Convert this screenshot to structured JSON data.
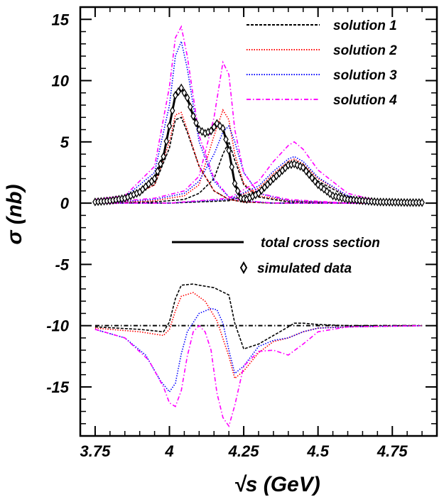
{
  "chart_data": {
    "type": "line",
    "xlabel": "√s (GeV)",
    "ylabel": "σ (nb)",
    "xlim": [
      3.7,
      4.9
    ],
    "ylim": [
      -19,
      16
    ],
    "x_ticks": [
      "3.75",
      "4",
      "4.25",
      "4.5",
      "4.75"
    ],
    "y_ticks": [
      "15",
      "10",
      "5",
      "0",
      "-5",
      "-10",
      "-15"
    ],
    "legend_position": "top-right",
    "legend": [
      {
        "label": "solution 1",
        "color": "#000000",
        "style": "dashed"
      },
      {
        "label": "solution 2",
        "color": "#ff0000",
        "style": "dotted"
      },
      {
        "label": "solution 3",
        "color": "#0000ff",
        "style": "dotted"
      },
      {
        "label": "solution 4",
        "color": "#ff00ff",
        "style": "dashdot"
      }
    ],
    "legend2": [
      {
        "label": "total cross section",
        "style": "solid"
      },
      {
        "label": "simulated data",
        "style": "marker"
      }
    ],
    "baseline": {
      "y": -10,
      "style": "dashdot",
      "color": "#000000"
    },
    "total_cross_section": {
      "x": [
        3.75,
        3.8,
        3.85,
        3.9,
        3.95,
        3.98,
        4.0,
        4.02,
        4.04,
        4.06,
        4.08,
        4.1,
        4.12,
        4.14,
        4.16,
        4.18,
        4.2,
        4.22,
        4.24,
        4.26,
        4.3,
        4.35,
        4.4,
        4.42,
        4.45,
        4.5,
        4.55,
        4.6,
        4.7,
        4.8,
        4.85
      ],
      "y": [
        0.1,
        0.2,
        0.4,
        0.9,
        2.0,
        3.8,
        6.3,
        8.8,
        9.4,
        8.6,
        7.1,
        6.0,
        5.7,
        5.9,
        6.5,
        6.1,
        4.3,
        1.6,
        0.4,
        0.3,
        0.8,
        2.0,
        3.1,
        3.2,
        2.9,
        1.5,
        0.6,
        0.3,
        0.1,
        0.05,
        0.05
      ]
    },
    "series": [
      {
        "name": "solution 1",
        "components": [
          {
            "x": [
              3.75,
              3.85,
              3.95,
              4.0,
              4.02,
              4.04,
              4.06,
              4.1,
              4.15,
              4.2,
              4.25,
              4.35,
              4.5,
              4.85
            ],
            "y": [
              0.1,
              0.3,
              1.5,
              4.5,
              6.8,
              7.0,
              5.8,
              3.0,
              1.0,
              0.3,
              0.1,
              0.0,
              0.0,
              0.0
            ]
          },
          {
            "x": [
              3.75,
              3.95,
              4.05,
              4.1,
              4.15,
              4.18,
              4.2,
              4.22,
              4.25,
              4.3,
              4.4,
              4.6,
              4.85
            ],
            "y": [
              0.0,
              0.1,
              0.3,
              0.8,
              2.0,
              4.0,
              5.0,
              3.5,
              1.5,
              0.5,
              0.1,
              0.0,
              0.0
            ]
          },
          {
            "x": [
              3.75,
              4.0,
              4.2,
              4.3,
              4.35,
              4.4,
              4.42,
              4.45,
              4.5,
              4.6,
              4.7,
              4.85
            ],
            "y": [
              0.0,
              0.0,
              0.2,
              1.0,
              2.0,
              3.0,
              3.2,
              2.9,
              1.8,
              0.5,
              0.1,
              0.0
            ]
          },
          {
            "x": [
              3.75,
              3.9,
              3.98,
              4.0,
              4.02,
              4.04,
              4.08,
              4.1,
              4.15,
              4.2,
              4.22,
              4.25,
              4.3,
              4.35,
              4.4,
              4.42,
              4.45,
              4.5,
              4.6,
              4.85
            ],
            "y": [
              -10.1,
              -10.3,
              -10.5,
              -9.7,
              -7.8,
              -6.7,
              -6.6,
              -6.7,
              -6.9,
              -7.5,
              -9.8,
              -11.9,
              -11.5,
              -10.8,
              -10.1,
              -9.8,
              -9.8,
              -9.9,
              -10.0,
              -10.0
            ]
          }
        ]
      },
      {
        "name": "solution 2",
        "components": [
          {
            "x": [
              3.75,
              3.85,
              3.95,
              4.0,
              4.02,
              4.04,
              4.06,
              4.1,
              4.15,
              4.2,
              4.25,
              4.35,
              4.5,
              4.85
            ],
            "y": [
              0.1,
              0.3,
              1.5,
              5.0,
              7.2,
              7.4,
              6.0,
              3.0,
              1.0,
              0.3,
              0.1,
              0.0,
              0.0,
              0.0
            ]
          },
          {
            "x": [
              3.75,
              3.95,
              4.05,
              4.1,
              4.15,
              4.18,
              4.2,
              4.22,
              4.25,
              4.3,
              4.4,
              4.6,
              4.85
            ],
            "y": [
              0.0,
              0.2,
              0.6,
              1.5,
              5.5,
              7.6,
              6.8,
              4.0,
              1.6,
              0.6,
              0.2,
              0.0,
              0.0
            ]
          },
          {
            "x": [
              3.75,
              4.0,
              4.2,
              4.3,
              4.35,
              4.4,
              4.42,
              4.45,
              4.5,
              4.6,
              4.7,
              4.85
            ],
            "y": [
              0.0,
              0.0,
              0.3,
              1.2,
              2.4,
              3.4,
              3.6,
              3.2,
              2.0,
              0.6,
              0.1,
              0.0
            ]
          },
          {
            "x": [
              3.75,
              3.9,
              3.98,
              4.0,
              4.02,
              4.04,
              4.08,
              4.12,
              4.16,
              4.2,
              4.22,
              4.25,
              4.3,
              4.35,
              4.4,
              4.45,
              4.5,
              4.6,
              4.85
            ],
            "y": [
              -10.2,
              -10.5,
              -10.8,
              -10.3,
              -8.8,
              -7.6,
              -7.3,
              -8.0,
              -9.6,
              -12.5,
              -14.3,
              -13.7,
              -12.2,
              -11.3,
              -11.0,
              -10.5,
              -10.2,
              -10.1,
              -10.0
            ]
          }
        ]
      },
      {
        "name": "solution 3",
        "components": [
          {
            "x": [
              3.75,
              3.85,
              3.95,
              4.0,
              4.02,
              4.04,
              4.06,
              4.1,
              4.15,
              4.2,
              4.25,
              4.35,
              4.5,
              4.85
            ],
            "y": [
              0.2,
              0.5,
              2.5,
              8.0,
              12.0,
              13.2,
              11.0,
              5.0,
              1.8,
              0.5,
              0.2,
              0.0,
              0.0,
              0.0
            ]
          },
          {
            "x": [
              3.75,
              3.95,
              4.05,
              4.1,
              4.15,
              4.18,
              4.2,
              4.22,
              4.25,
              4.3,
              4.4,
              4.6,
              4.85
            ],
            "y": [
              0.0,
              0.3,
              0.8,
              1.8,
              4.0,
              5.8,
              6.3,
              5.0,
              2.5,
              0.8,
              0.2,
              0.0,
              0.0
            ]
          },
          {
            "x": [
              3.75,
              4.0,
              4.2,
              4.3,
              4.35,
              4.4,
              4.42,
              4.45,
              4.5,
              4.6,
              4.7,
              4.85
            ],
            "y": [
              0.0,
              0.0,
              0.3,
              1.4,
              2.6,
              3.6,
              3.8,
              3.4,
              2.1,
              0.6,
              0.1,
              0.0
            ]
          },
          {
            "x": [
              3.75,
              3.85,
              3.92,
              3.97,
              4.0,
              4.02,
              4.04,
              4.06,
              4.1,
              4.14,
              4.16,
              4.18,
              4.2,
              4.22,
              4.25,
              4.3,
              4.35,
              4.4,
              4.45,
              4.5,
              4.6,
              4.85
            ],
            "y": [
              -10.3,
              -11.0,
              -12.4,
              -14.5,
              -15.4,
              -14.7,
              -12.3,
              -10.5,
              -9.0,
              -8.6,
              -8.7,
              -9.8,
              -12.0,
              -13.9,
              -13.3,
              -11.7,
              -11.2,
              -11.0,
              -10.5,
              -10.2,
              -10.1,
              -10.0
            ]
          }
        ]
      },
      {
        "name": "solution 4",
        "components": [
          {
            "x": [
              3.75,
              3.85,
              3.95,
              4.0,
              4.02,
              4.04,
              4.06,
              4.1,
              4.15,
              4.2,
              4.25,
              4.35,
              4.5,
              4.85
            ],
            "y": [
              0.3,
              0.6,
              3.0,
              9.5,
              13.5,
              14.4,
              12.0,
              5.5,
              2.0,
              0.5,
              0.2,
              0.0,
              0.0,
              0.0
            ]
          },
          {
            "x": [
              3.75,
              3.95,
              4.05,
              4.1,
              4.15,
              4.18,
              4.2,
              4.22,
              4.25,
              4.3,
              4.4,
              4.6,
              4.85
            ],
            "y": [
              0.0,
              0.4,
              1.0,
              2.2,
              7.0,
              11.5,
              10.5,
              6.0,
              2.5,
              0.8,
              0.3,
              0.0,
              0.0
            ]
          },
          {
            "x": [
              3.75,
              4.0,
              4.2,
              4.3,
              4.35,
              4.4,
              4.42,
              4.45,
              4.5,
              4.6,
              4.7,
              4.85
            ],
            "y": [
              0.0,
              0.0,
              0.4,
              1.8,
              3.4,
              4.7,
              5.0,
              4.4,
              2.7,
              0.8,
              0.2,
              0.0
            ]
          },
          {
            "x": [
              3.75,
              3.85,
              3.93,
              3.98,
              4.0,
              4.02,
              4.04,
              4.06,
              4.08,
              4.1,
              4.12,
              4.14,
              4.16,
              4.18,
              4.2,
              4.22,
              4.25,
              4.3,
              4.35,
              4.4,
              4.45,
              4.5,
              4.6,
              4.85
            ],
            "y": [
              -10.3,
              -11.0,
              -12.8,
              -15.0,
              -16.3,
              -16.6,
              -15.3,
              -12.5,
              -10.5,
              -10.0,
              -10.5,
              -12.0,
              -15.5,
              -17.5,
              -18.2,
              -16.5,
              -13.3,
              -12.1,
              -12.0,
              -12.4,
              -11.5,
              -10.5,
              -10.1,
              -10.0
            ]
          }
        ]
      }
    ]
  }
}
